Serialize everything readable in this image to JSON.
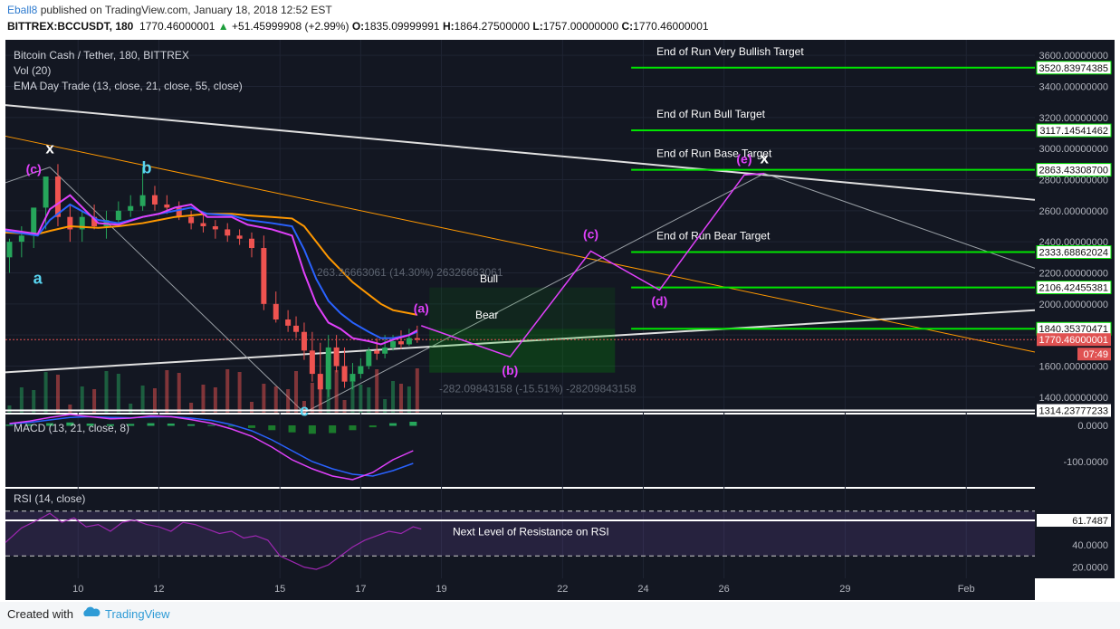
{
  "header": {
    "user": "Eball8",
    "published": "published on TradingView.com, January 18, 2018 12:52 EST",
    "symbol_line": "BITTREX:BCCUSDT, 180",
    "last": "1770.46000001",
    "change": "+51.45999908 (+2.99%)",
    "o_label": "O:",
    "o_val": "1835.09999991",
    "h_label": "H:",
    "h_val": "1864.27500000",
    "l_label": "L:",
    "l_val": "1757.00000000",
    "c_label": "C:",
    "c_val": "1770.46000001"
  },
  "legend": {
    "title": "Bitcoin Cash / Tether, 180, BITTREX",
    "vol": "Vol (20)",
    "ema": "EMA Day Trade (13, close, 21, close, 55, close)",
    "macd": "MACD (13, 21, close, 8)",
    "rsi": "RSI (14, close)"
  },
  "footer": {
    "created": "Created with",
    "brand": "TradingView"
  },
  "colors": {
    "bg": "#131722",
    "target": "#00e600",
    "axis_bg": "#131722",
    "price_tag": "#e05252",
    "wave": "#e040fb",
    "wave_abc": "#58d4f0"
  },
  "chart_data": [
    {
      "type": "candlestick",
      "title": "Bitcoin Cash / Tether, 180, BITTREX",
      "ylim": [
        1300,
        3700
      ],
      "y_ticks": [
        "1400.00000000",
        "1600.00000000",
        "1800.00000000",
        "2000.00000000",
        "2200.00000000",
        "2400.00000000",
        "2600.00000000",
        "2800.00000000",
        "3000.00000000",
        "3200.00000000",
        "3400.00000000",
        "3600.00000000"
      ],
      "x_ticks": [
        "10",
        "12",
        "15",
        "17",
        "19",
        "22",
        "24",
        "26",
        "29",
        "Feb"
      ],
      "x_tick_days": [
        10,
        12,
        15,
        17,
        19,
        22,
        24,
        26,
        29,
        32
      ],
      "x_range_days": [
        8.2,
        33.7
      ],
      "price_levels": [
        {
          "value": 3520.83974385,
          "label": "3520.83974385",
          "text": "End of Run Very Bullish Target"
        },
        {
          "value": 3117.14541462,
          "label": "3117.14541462",
          "text": "End of Run Bull Target"
        },
        {
          "value": 2863.433087,
          "label": "2863.43308700",
          "text": "End of Run Base Target"
        },
        {
          "value": 2333.68862024,
          "label": "2333.68862024",
          "text": "End of Run Bear Target"
        },
        {
          "value": 2106.42455381,
          "label": "2106.42455381",
          "text": ""
        },
        {
          "value": 1840.35370471,
          "label": "1840.35370471",
          "text": ""
        }
      ],
      "white_level": {
        "value": 1314.23777233,
        "label": "1314.23777233"
      },
      "current_price": {
        "value": 1770.46000001,
        "label": "1770.46000001",
        "countdown": "07:49"
      },
      "measure_bull": {
        "text": "263.26663061 (14.30%) 26326663061",
        "label": "Bull"
      },
      "measure_bear": {
        "text": "-282.09843158 (-15.51%) -28209843158",
        "label": "Bear"
      },
      "wave_labels": [
        {
          "text": "x",
          "day": 9.3,
          "price": 2970
        },
        {
          "text": "(c)",
          "day": 8.9,
          "price": 2840
        },
        {
          "text": "(d)",
          "day": 7.3,
          "price": 2130
        },
        {
          "text": "a",
          "day": 9.0,
          "price": 2130
        },
        {
          "text": "b",
          "day": 11.7,
          "price": 2840
        },
        {
          "text": "c",
          "day": 15.6,
          "price": 1280
        },
        {
          "text": "(a)",
          "day": 18.5,
          "price": 1945
        },
        {
          "text": "(b)",
          "day": 20.7,
          "price": 1545
        },
        {
          "text": "(c)",
          "day": 22.7,
          "price": 2420
        },
        {
          "text": "(d)",
          "day": 24.4,
          "price": 1990
        },
        {
          "text": "(e)",
          "day": 26.5,
          "price": 2905
        },
        {
          "text": "x",
          "day": 27.0,
          "price": 2905
        }
      ],
      "projection": {
        "days": [
          18.5,
          20.7,
          22.7,
          24.4,
          26.5,
          27.0
        ],
        "prices": [
          1860,
          1660,
          2340,
          2090,
          2830,
          2840
        ]
      },
      "ema_fast": {
        "days": [
          8.2,
          9.0,
          9.3,
          9.8,
          10.5,
          11.0,
          11.6,
          12.0,
          12.4,
          12.8,
          13.2,
          13.8,
          14.2,
          14.8,
          15.3,
          15.6,
          15.9,
          16.2,
          16.5,
          16.8,
          17.2,
          17.5,
          17.8,
          18.2,
          18.4
        ],
        "prices": [
          2480,
          2450,
          2610,
          2700,
          2520,
          2510,
          2560,
          2580,
          2620,
          2640,
          2560,
          2560,
          2510,
          2480,
          2440,
          2200,
          2000,
          1880,
          1840,
          1780,
          1760,
          1740,
          1770,
          1800,
          1830
        ]
      },
      "ema_mid": {
        "days": [
          8.2,
          9.0,
          9.3,
          9.8,
          10.5,
          11.0,
          11.6,
          12.0,
          12.4,
          12.8,
          13.2,
          13.8,
          14.2,
          14.8,
          15.3,
          15.6,
          15.9,
          16.2,
          16.5,
          16.8,
          17.2,
          17.5,
          17.8,
          18.2,
          18.4
        ],
        "prices": [
          2470,
          2440,
          2540,
          2640,
          2540,
          2520,
          2560,
          2580,
          2600,
          2620,
          2580,
          2570,
          2540,
          2520,
          2500,
          2350,
          2160,
          2020,
          1940,
          1880,
          1820,
          1780,
          1780,
          1800,
          1820
        ]
      },
      "ema_slow": {
        "days": [
          8.2,
          9.0,
          9.3,
          9.8,
          10.5,
          11.0,
          11.6,
          12.0,
          12.4,
          12.8,
          13.2,
          13.8,
          14.2,
          14.8,
          15.3,
          15.6,
          15.9,
          16.2,
          16.5,
          16.8,
          17.2,
          17.5,
          17.8,
          18.2,
          18.4
        ],
        "prices": [
          2460,
          2450,
          2470,
          2500,
          2490,
          2500,
          2520,
          2540,
          2560,
          2570,
          2580,
          2580,
          2570,
          2560,
          2550,
          2500,
          2400,
          2300,
          2220,
          2140,
          2060,
          2000,
          1960,
          1940,
          1930
        ]
      },
      "candles": {
        "days": [
          8.3,
          8.6,
          8.9,
          9.2,
          9.5,
          9.8,
          10.1,
          10.4,
          10.7,
          11.0,
          11.3,
          11.6,
          11.9,
          12.2,
          12.5,
          12.8,
          13.1,
          13.4,
          13.7,
          14.0,
          14.3,
          14.6,
          14.9,
          15.2,
          15.4,
          15.6,
          15.8,
          16.0,
          16.2,
          16.4,
          16.6,
          16.8,
          17.0,
          17.2,
          17.4,
          17.6,
          17.8,
          18.0,
          18.2,
          18.4
        ],
        "open": [
          2300,
          2400,
          2440,
          2620,
          2820,
          2560,
          2480,
          2560,
          2500,
          2540,
          2600,
          2630,
          2700,
          2640,
          2620,
          2560,
          2520,
          2500,
          2480,
          2440,
          2420,
          2360,
          2000,
          1900,
          1860,
          1820,
          1700,
          1550,
          1450,
          1720,
          1600,
          1500,
          1550,
          1600,
          1700,
          1680,
          1720,
          1760,
          1740,
          1780
        ],
        "high": [
          2420,
          2500,
          2560,
          2700,
          2900,
          2640,
          2600,
          2640,
          2600,
          2660,
          2700,
          2880,
          2760,
          2700,
          2660,
          2600,
          2580,
          2540,
          2520,
          2480,
          2460,
          2440,
          2080,
          1960,
          1920,
          1880,
          1820,
          1750,
          1800,
          1800,
          1720,
          1620,
          1650,
          1720,
          1780,
          1800,
          1800,
          1830,
          1840,
          1860
        ],
        "low": [
          2200,
          2300,
          2360,
          2480,
          2500,
          2400,
          2400,
          2480,
          2420,
          2500,
          2560,
          2600,
          2600,
          2580,
          2540,
          2480,
          2460,
          2420,
          2400,
          2380,
          2300,
          1960,
          1880,
          1820,
          1780,
          1640,
          1500,
          1350,
          1400,
          1560,
          1460,
          1450,
          1520,
          1580,
          1640,
          1650,
          1700,
          1710,
          1730,
          1750
        ],
        "close": [
          2400,
          2440,
          2620,
          2820,
          2560,
          2480,
          2560,
          2500,
          2540,
          2600,
          2630,
          2700,
          2640,
          2620,
          2560,
          2520,
          2500,
          2480,
          2440,
          2420,
          2360,
          2000,
          1900,
          1860,
          1820,
          1700,
          1550,
          1450,
          1720,
          1600,
          1500,
          1550,
          1600,
          1700,
          1680,
          1720,
          1760,
          1740,
          1780,
          1770
        ]
      }
    },
    {
      "type": "bar",
      "title": "MACD (13, 21, close, 8)",
      "y_ticks": [
        "0.0000",
        "-100.0000"
      ],
      "ylim": [
        -170,
        30
      ],
      "days": [
        8.3,
        8.8,
        9.3,
        9.8,
        10.3,
        10.8,
        11.3,
        11.8,
        12.3,
        12.8,
        13.3,
        13.8,
        14.3,
        14.8,
        15.3,
        15.8,
        16.3,
        16.8,
        17.3,
        17.8,
        18.3
      ],
      "histogram": [
        2,
        3,
        6,
        8,
        5,
        3,
        4,
        6,
        5,
        3,
        1,
        -2,
        -6,
        -12,
        -18,
        -22,
        -20,
        -12,
        -4,
        6,
        10
      ],
      "macd": [
        5,
        12,
        22,
        30,
        24,
        18,
        20,
        26,
        24,
        16,
        6,
        -10,
        -30,
        -60,
        -95,
        -120,
        -140,
        -150,
        -130,
        -95,
        -70
      ],
      "signal": [
        4,
        8,
        15,
        22,
        24,
        22,
        21,
        23,
        24,
        20,
        14,
        2,
        -15,
        -40,
        -70,
        -100,
        -120,
        -135,
        -140,
        -125,
        -105
      ]
    },
    {
      "type": "line",
      "title": "RSI (14, close)",
      "y_ticks": [
        "20.0000",
        "40.0000"
      ],
      "ylim": [
        10,
        90
      ],
      "current": "61.7487",
      "band": [
        30,
        70
      ],
      "annotation": "Next Level of Resistance on RSI",
      "days": [
        8.2,
        8.6,
        9.0,
        9.3,
        9.6,
        9.9,
        10.2,
        10.5,
        10.8,
        11.1,
        11.4,
        11.7,
        12.0,
        12.3,
        12.6,
        12.9,
        13.2,
        13.5,
        13.8,
        14.1,
        14.4,
        14.7,
        15.0,
        15.3,
        15.6,
        15.9,
        16.2,
        16.5,
        16.8,
        17.1,
        17.4,
        17.7,
        18.0,
        18.3,
        18.5
      ],
      "values": [
        42,
        55,
        62,
        68,
        60,
        64,
        56,
        58,
        52,
        60,
        62,
        58,
        56,
        52,
        60,
        58,
        54,
        50,
        52,
        46,
        48,
        44,
        30,
        25,
        20,
        18,
        22,
        30,
        38,
        44,
        48,
        52,
        50,
        56,
        54
      ]
    }
  ]
}
